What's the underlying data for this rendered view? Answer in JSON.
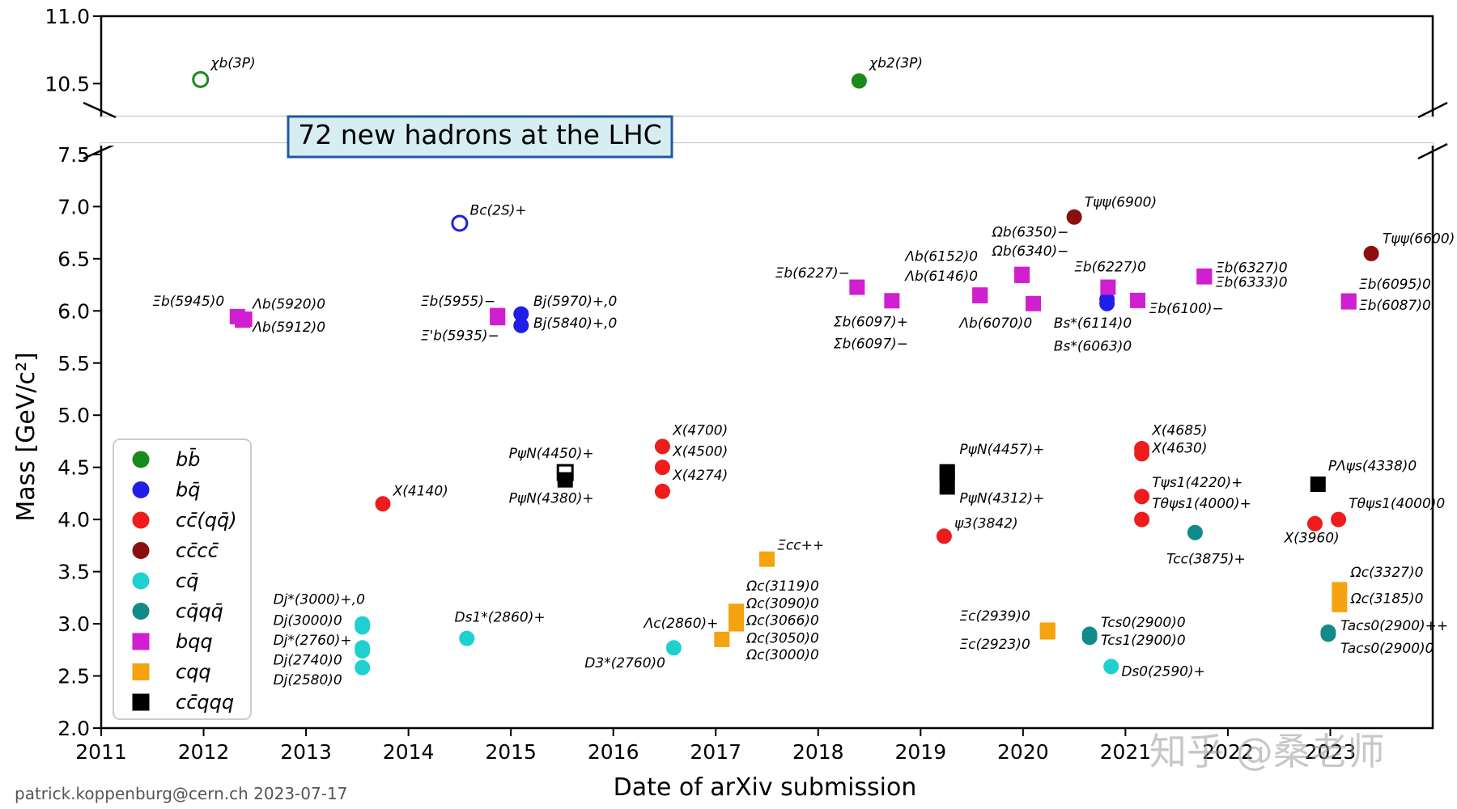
{
  "chart_data": {
    "type": "scatter",
    "title": "72 new hadrons at the LHC",
    "xlabel": "Date of arXiv submission",
    "ylabel": "Mass [GeV/c²]",
    "credit": "patrick.koppenburg@cern.ch 2023-07-17",
    "watermark": "知乎 @桑老师",
    "xlim": [
      2011,
      2024
    ],
    "ylim_lower": [
      2.0,
      7.6
    ],
    "ylim_upper": [
      10.25,
      11.0
    ],
    "x_ticks": [
      "2011",
      "2012",
      "2013",
      "2014",
      "2015",
      "2016",
      "2017",
      "2018",
      "2019",
      "2020",
      "2021",
      "2022",
      "2023"
    ],
    "y_ticks_lower": [
      "2.0",
      "2.5",
      "3.0",
      "3.5",
      "4.0",
      "4.5",
      "5.0",
      "5.5",
      "6.0",
      "6.5",
      "7.0",
      "7.5"
    ],
    "y_ticks_upper": [
      "10.5",
      "11.0"
    ],
    "legend_position": "lower-left",
    "legend": [
      {
        "key": "bbbar",
        "label": "bb̄",
        "marker": "circle",
        "color": "#1a8a1a"
      },
      {
        "key": "bqbar",
        "label": "bq̄",
        "marker": "circle",
        "color": "#1f1fe8"
      },
      {
        "key": "ccbarqqbar",
        "label": "cc̄(qq̄)",
        "marker": "circle",
        "color": "#ee1c1c"
      },
      {
        "key": "ccbarccbar",
        "label": "cc̄cc̄",
        "marker": "circle",
        "color": "#8b0f0f"
      },
      {
        "key": "cqbar",
        "label": "cq̄",
        "marker": "circle",
        "color": "#1fd0d0"
      },
      {
        "key": "cqbarqqbar",
        "label": "cq̄qq̄",
        "marker": "circle",
        "color": "#118a8a"
      },
      {
        "key": "bqq",
        "label": "bqq",
        "marker": "square",
        "color": "#d01fd0"
      },
      {
        "key": "cqq",
        "label": "cqq",
        "marker": "square",
        "color": "#f5a30f"
      },
      {
        "key": "ccbarqqq",
        "label": "cc̄qqq",
        "marker": "square",
        "color": "#000000"
      }
    ],
    "points": [
      {
        "x": 2011.97,
        "y": 10.53,
        "series": "bbbar",
        "hollow": true
      },
      {
        "x": 2018.4,
        "y": 10.52,
        "series": "bbbar"
      },
      {
        "x": 2014.5,
        "y": 6.84,
        "series": "bqbar",
        "hollow": true
      },
      {
        "x": 2015.1,
        "y": 5.97,
        "series": "bqbar"
      },
      {
        "x": 2015.1,
        "y": 5.86,
        "series": "bqbar"
      },
      {
        "x": 2020.82,
        "y": 6.07,
        "series": "bqbar"
      },
      {
        "x": 2020.82,
        "y": 6.11,
        "series": "bqbar"
      },
      {
        "x": 2013.75,
        "y": 4.15,
        "series": "ccbarqqbar"
      },
      {
        "x": 2016.48,
        "y": 4.7,
        "series": "ccbarqqbar"
      },
      {
        "x": 2016.48,
        "y": 4.5,
        "series": "ccbarqqbar"
      },
      {
        "x": 2016.48,
        "y": 4.27,
        "series": "ccbarqqbar"
      },
      {
        "x": 2019.23,
        "y": 3.84,
        "series": "ccbarqqbar"
      },
      {
        "x": 2021.16,
        "y": 4.68,
        "series": "ccbarqqbar"
      },
      {
        "x": 2021.16,
        "y": 4.63,
        "series": "ccbarqqbar"
      },
      {
        "x": 2021.16,
        "y": 4.22,
        "series": "ccbarqqbar"
      },
      {
        "x": 2021.16,
        "y": 4.0,
        "series": "ccbarqqbar"
      },
      {
        "x": 2022.85,
        "y": 3.96,
        "series": "ccbarqqbar"
      },
      {
        "x": 2023.08,
        "y": 4.0,
        "series": "ccbarqqbar"
      },
      {
        "x": 2020.5,
        "y": 6.9,
        "series": "ccbarccbar"
      },
      {
        "x": 2023.4,
        "y": 6.55,
        "series": "ccbarccbar"
      },
      {
        "x": 2013.55,
        "y": 3.0,
        "series": "cqbar"
      },
      {
        "x": 2013.55,
        "y": 2.97,
        "series": "cqbar"
      },
      {
        "x": 2013.55,
        "y": 2.77,
        "series": "cqbar"
      },
      {
        "x": 2013.55,
        "y": 2.74,
        "series": "cqbar"
      },
      {
        "x": 2013.55,
        "y": 2.58,
        "series": "cqbar"
      },
      {
        "x": 2014.57,
        "y": 2.86,
        "series": "cqbar"
      },
      {
        "x": 2016.59,
        "y": 2.77,
        "series": "cqbar"
      },
      {
        "x": 2020.86,
        "y": 2.59,
        "series": "cqbar"
      },
      {
        "x": 2021.68,
        "y": 3.875,
        "series": "cqbarqqbar"
      },
      {
        "x": 2020.65,
        "y": 2.9,
        "series": "cqbarqqbar"
      },
      {
        "x": 2020.65,
        "y": 2.87,
        "series": "cqbarqqbar"
      },
      {
        "x": 2022.98,
        "y": 2.92,
        "series": "cqbarqqbar"
      },
      {
        "x": 2022.98,
        "y": 2.9,
        "series": "cqbarqqbar"
      },
      {
        "x": 2012.33,
        "y": 5.945,
        "series": "bqq"
      },
      {
        "x": 2012.38,
        "y": 5.912,
        "series": "bqq"
      },
      {
        "x": 2012.4,
        "y": 5.92,
        "series": "bqq"
      },
      {
        "x": 2014.87,
        "y": 5.955,
        "series": "bqq"
      },
      {
        "x": 2014.87,
        "y": 5.935,
        "series": "bqq"
      },
      {
        "x": 2018.38,
        "y": 6.227,
        "series": "bqq"
      },
      {
        "x": 2018.72,
        "y": 6.097,
        "series": "bqq"
      },
      {
        "x": 2019.58,
        "y": 6.152,
        "series": "bqq"
      },
      {
        "x": 2019.58,
        "y": 6.146,
        "series": "bqq"
      },
      {
        "x": 2019.99,
        "y": 6.35,
        "series": "bqq"
      },
      {
        "x": 2019.99,
        "y": 6.34,
        "series": "bqq"
      },
      {
        "x": 2020.1,
        "y": 6.07,
        "series": "bqq"
      },
      {
        "x": 2020.83,
        "y": 6.227,
        "series": "bqq"
      },
      {
        "x": 2021.12,
        "y": 6.1,
        "series": "bqq"
      },
      {
        "x": 2021.77,
        "y": 6.327,
        "series": "bqq"
      },
      {
        "x": 2021.77,
        "y": 6.333,
        "series": "bqq"
      },
      {
        "x": 2023.18,
        "y": 6.095,
        "series": "bqq"
      },
      {
        "x": 2023.18,
        "y": 6.087,
        "series": "bqq"
      },
      {
        "x": 2017.5,
        "y": 3.62,
        "series": "cqq"
      },
      {
        "x": 2017.06,
        "y": 2.85,
        "series": "cqq"
      },
      {
        "x": 2017.2,
        "y": 3.119,
        "series": "cqq"
      },
      {
        "x": 2017.2,
        "y": 3.09,
        "series": "cqq"
      },
      {
        "x": 2017.2,
        "y": 3.066,
        "series": "cqq"
      },
      {
        "x": 2017.2,
        "y": 3.05,
        "series": "cqq"
      },
      {
        "x": 2017.2,
        "y": 3.0,
        "series": "cqq"
      },
      {
        "x": 2020.24,
        "y": 2.939,
        "series": "cqq"
      },
      {
        "x": 2020.24,
        "y": 2.923,
        "series": "cqq"
      },
      {
        "x": 2023.09,
        "y": 3.327,
        "series": "cqq"
      },
      {
        "x": 2023.09,
        "y": 3.185,
        "series": "cqq"
      },
      {
        "x": 2015.53,
        "y": 4.45,
        "series": "ccbarqqq",
        "hollow": true
      },
      {
        "x": 2015.53,
        "y": 4.38,
        "series": "ccbarqqq"
      },
      {
        "x": 2019.26,
        "y": 4.457,
        "series": "ccbarqqq"
      },
      {
        "x": 2019.26,
        "y": 4.44,
        "series": "ccbarqqq"
      },
      {
        "x": 2019.26,
        "y": 4.312,
        "series": "ccbarqqq"
      },
      {
        "x": 2022.88,
        "y": 4.338,
        "series": "ccbarqqq"
      }
    ],
    "annotations": [
      {
        "text": "χb(3P)",
        "x": 2012.07,
        "y": 10.62
      },
      {
        "text": "χb2(3P)",
        "x": 2018.5,
        "y": 10.62
      },
      {
        "text": "Bc(2S)+",
        "x": 2014.6,
        "y": 6.92
      },
      {
        "text": "Ξb(5945)0",
        "x": 2011.5,
        "y": 6.05
      },
      {
        "text": "Λb(5920)0",
        "x": 2012.48,
        "y": 6.02
      },
      {
        "text": "Λb(5912)0",
        "x": 2012.48,
        "y": 5.8
      },
      {
        "text": "Ξb(5955)−",
        "x": 2014.12,
        "y": 6.05
      },
      {
        "text": "Bj(5970)+,0",
        "x": 2015.22,
        "y": 6.05
      },
      {
        "text": "Ξ'b(5935)−",
        "x": 2014.12,
        "y": 5.72
      },
      {
        "text": "Bj(5840)+,0",
        "x": 2015.22,
        "y": 5.84
      },
      {
        "text": "Ξb(6227)−",
        "x": 2017.58,
        "y": 6.32
      },
      {
        "text": "Σb(6097)+",
        "x": 2018.15,
        "y": 5.85
      },
      {
        "text": "Σb(6097)−",
        "x": 2018.15,
        "y": 5.64
      },
      {
        "text": "Λb(6152)0",
        "x": 2018.85,
        "y": 6.48
      },
      {
        "text": "Λb(6146)0",
        "x": 2018.85,
        "y": 6.29
      },
      {
        "text": "Ωb(6350)−",
        "x": 2019.7,
        "y": 6.71
      },
      {
        "text": "Ωb(6340)−",
        "x": 2019.7,
        "y": 6.53
      },
      {
        "text": "Ξb(6227)0",
        "x": 2020.5,
        "y": 6.38
      },
      {
        "text": "Λb(6070)0",
        "x": 2019.38,
        "y": 5.84
      },
      {
        "text": "Bs*(6114)0",
        "x": 2020.3,
        "y": 5.84
      },
      {
        "text": "Bs*(6063)0",
        "x": 2020.3,
        "y": 5.62
      },
      {
        "text": "Ξb(6100)−",
        "x": 2021.23,
        "y": 5.98
      },
      {
        "text": "Ξb(6327)0",
        "x": 2021.88,
        "y": 6.37
      },
      {
        "text": "Ξb(6333)0",
        "x": 2021.88,
        "y": 6.23
      },
      {
        "text": "Tψψ(6900)",
        "x": 2020.6,
        "y": 7.0
      },
      {
        "text": "Tψψ(6600)",
        "x": 2023.51,
        "y": 6.65
      },
      {
        "text": "Ξb(6095)0",
        "x": 2023.28,
        "y": 6.21
      },
      {
        "text": "Ξb(6087)0",
        "x": 2023.28,
        "y": 6.01
      },
      {
        "text": "X(4140)",
        "x": 2013.85,
        "y": 4.23
      },
      {
        "text": "X(4700)",
        "x": 2016.58,
        "y": 4.81
      },
      {
        "text": "X(4500)",
        "x": 2016.58,
        "y": 4.61
      },
      {
        "text": "X(4274)",
        "x": 2016.58,
        "y": 4.38
      },
      {
        "text": "PψN(4450)+",
        "x": 2014.98,
        "y": 4.59
      },
      {
        "text": "PψN(4380)+",
        "x": 2014.98,
        "y": 4.16
      },
      {
        "text": "PψN(4457)+",
        "x": 2019.38,
        "y": 4.63
      },
      {
        "text": "PψN(4312)+",
        "x": 2019.38,
        "y": 4.16
      },
      {
        "text": "ψ3(3842)",
        "x": 2019.33,
        "y": 3.92
      },
      {
        "text": "X(4685)",
        "x": 2021.26,
        "y": 4.81
      },
      {
        "text": "X(4630)",
        "x": 2021.26,
        "y": 4.64
      },
      {
        "text": "Tψs1(4220)+",
        "x": 2021.26,
        "y": 4.31
      },
      {
        "text": "Tθψs1(4000)+",
        "x": 2021.26,
        "y": 4.11
      },
      {
        "text": "Tcc(3875)+",
        "x": 2021.4,
        "y": 3.58
      },
      {
        "text": "X(3960)",
        "x": 2022.55,
        "y": 3.78
      },
      {
        "text": "PΛψs(4338)0",
        "x": 2022.98,
        "y": 4.47
      },
      {
        "text": "Tθψs1(4000)0",
        "x": 2023.18,
        "y": 4.11
      },
      {
        "text": "Ξcc++",
        "x": 2017.6,
        "y": 3.71
      },
      {
        "text": "Ωc(3119)0",
        "x": 2017.3,
        "y": 3.32
      },
      {
        "text": "Ωc(3090)0",
        "x": 2017.3,
        "y": 3.15
      },
      {
        "text": "Ωc(3066)0",
        "x": 2017.3,
        "y": 2.99
      },
      {
        "text": "Ωc(3050)0",
        "x": 2017.3,
        "y": 2.82
      },
      {
        "text": "Ωc(3000)0",
        "x": 2017.3,
        "y": 2.66
      },
      {
        "text": "Λc(2860)+",
        "x": 2016.3,
        "y": 2.96
      },
      {
        "text": "D3*(2760)0",
        "x": 2015.72,
        "y": 2.58
      },
      {
        "text": "Ds1*(2860)+",
        "x": 2014.45,
        "y": 3.02
      },
      {
        "text": "Dj*(3000)+,0",
        "x": 2012.68,
        "y": 3.19
      },
      {
        "text": "Dj(3000)0",
        "x": 2012.68,
        "y": 2.99
      },
      {
        "text": "Dj*(2760)+",
        "x": 2012.68,
        "y": 2.8
      },
      {
        "text": "Dj(2740)0",
        "x": 2012.68,
        "y": 2.61
      },
      {
        "text": "Dj(2580)0",
        "x": 2012.68,
        "y": 2.42
      },
      {
        "text": "Ξc(2939)0",
        "x": 2019.38,
        "y": 3.03
      },
      {
        "text": "Ξc(2923)0",
        "x": 2019.38,
        "y": 2.76
      },
      {
        "text": "Tcs0(2900)0",
        "x": 2020.76,
        "y": 2.97
      },
      {
        "text": "Tcs1(2900)0",
        "x": 2020.76,
        "y": 2.8
      },
      {
        "text": "Ds0(2590)+",
        "x": 2020.96,
        "y": 2.5
      },
      {
        "text": "Ωc(3327)0",
        "x": 2023.2,
        "y": 3.45
      },
      {
        "text": "Ωc(3185)0",
        "x": 2023.2,
        "y": 3.2
      },
      {
        "text": "Tacs0(2900)++",
        "x": 2023.1,
        "y": 2.94
      },
      {
        "text": "Tacs0(2900)0",
        "x": 2023.1,
        "y": 2.72
      }
    ]
  }
}
